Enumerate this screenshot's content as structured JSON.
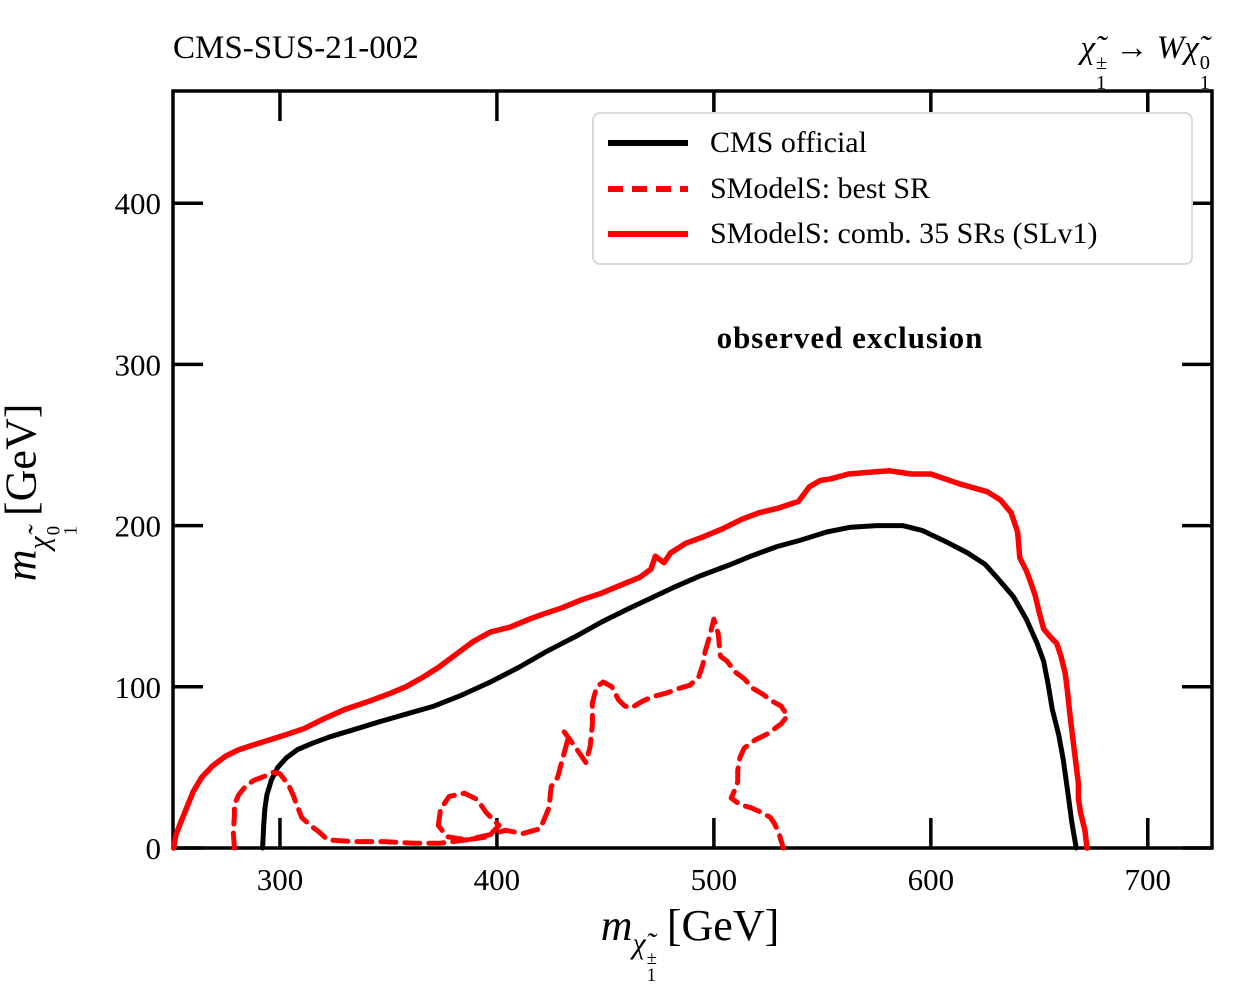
{
  "titles": {
    "left": "CMS-SUS-21-002"
  },
  "process": {
    "chi": "χ̃",
    "chargino_sup": "±",
    "chargino_sub": "1",
    "arrow": " → ",
    "boson": "W",
    "neutralino_chi": "χ̃",
    "neutralino_sup": "0",
    "neutralino_sub": "1"
  },
  "annotation": "observed exclusion",
  "legend": {
    "items": [
      {
        "label": "CMS official",
        "color": "#000000",
        "dash": null
      },
      {
        "label": "SModelS: best SR",
        "color": "#ff0000",
        "dash": [
          15,
          9
        ]
      },
      {
        "label": "SModelS: comb. 35 SRs (SLv1)",
        "color": "#ff0000",
        "dash": null
      }
    ]
  },
  "axes": {
    "x_label": {
      "m": "m",
      "chi": "χ̃",
      "sup": "±",
      "sub": "1",
      "unit": "[GeV]"
    },
    "y_label": {
      "m": "m",
      "chi": "χ̃",
      "sup": "0",
      "sub": "1",
      "unit": "[GeV]"
    }
  },
  "chart_data": {
    "type": "line",
    "title": "CMS-SUS-21-002",
    "xlabel": "m_chargino1 [GeV]",
    "ylabel": "m_neutralino1 [GeV]",
    "xlim": [
      250.7,
      729.6
    ],
    "ylim": [
      0,
      469.6
    ],
    "x_ticks": [
      300,
      400,
      500,
      600,
      700
    ],
    "y_ticks": [
      0,
      100,
      200,
      300,
      400
    ],
    "grid": false,
    "legend_position": "upper right",
    "series": [
      {
        "name": "CMS official",
        "color": "#000000",
        "width": 5,
        "dash": null,
        "closed": false,
        "points": [
          [
            292,
            0
          ],
          [
            292.5,
            14
          ],
          [
            293,
            24
          ],
          [
            294,
            33
          ],
          [
            296,
            42
          ],
          [
            299,
            50
          ],
          [
            303,
            56
          ],
          [
            308,
            61
          ],
          [
            315,
            65
          ],
          [
            323,
            69
          ],
          [
            333,
            73
          ],
          [
            345,
            78
          ],
          [
            358,
            83
          ],
          [
            371,
            88
          ],
          [
            384,
            95
          ],
          [
            397,
            103
          ],
          [
            410,
            112
          ],
          [
            423,
            122
          ],
          [
            436,
            131
          ],
          [
            448,
            140
          ],
          [
            460,
            148
          ],
          [
            471,
            155
          ],
          [
            482,
            162
          ],
          [
            494,
            169
          ],
          [
            506,
            175
          ],
          [
            517,
            181
          ],
          [
            529,
            187
          ],
          [
            540,
            191
          ],
          [
            552,
            196
          ],
          [
            563,
            199
          ],
          [
            575,
            200
          ],
          [
            587,
            200
          ],
          [
            596,
            197
          ],
          [
            607,
            190
          ],
          [
            617,
            183
          ],
          [
            625,
            176
          ],
          [
            631,
            167
          ],
          [
            638,
            156
          ],
          [
            644,
            142
          ],
          [
            649,
            127
          ],
          [
            652,
            116
          ],
          [
            654,
            102
          ],
          [
            656,
            86
          ],
          [
            659,
            70
          ],
          [
            661,
            55
          ],
          [
            663,
            36
          ],
          [
            665,
            16
          ],
          [
            667,
            0
          ]
        ]
      },
      {
        "name": "SModelS: best SR",
        "color": "#ff0000",
        "width": 5,
        "dash": [
          15,
          9
        ],
        "closed": false,
        "points": [
          [
            279,
            0
          ],
          [
            278.5,
            10
          ],
          [
            279,
            20
          ],
          [
            279,
            27
          ],
          [
            281,
            33
          ],
          [
            284,
            38
          ],
          [
            288,
            42
          ],
          [
            292,
            44
          ],
          [
            297,
            47
          ],
          [
            300,
            46
          ],
          [
            304,
            39
          ],
          [
            306,
            33
          ],
          [
            308,
            26
          ],
          [
            310,
            19
          ],
          [
            314,
            14
          ],
          [
            318,
            10
          ],
          [
            322,
            5
          ],
          [
            334,
            4
          ],
          [
            348,
            4
          ],
          [
            362,
            3
          ],
          [
            374,
            3
          ],
          [
            386,
            5
          ],
          [
            396,
            8
          ],
          [
            404,
            11
          ],
          [
            412,
            9
          ],
          [
            420,
            12
          ],
          [
            424,
            25
          ],
          [
            425,
            38
          ],
          [
            428,
            44
          ],
          [
            433,
            69
          ],
          [
            431,
            72
          ],
          [
            437,
            61
          ],
          [
            441,
            53
          ],
          [
            443,
            63
          ],
          [
            444,
            77
          ],
          [
            444,
            90
          ],
          [
            446,
            100
          ],
          [
            449,
            103
          ],
          [
            453,
            100
          ],
          [
            456,
            92
          ],
          [
            459,
            88
          ],
          [
            462,
            87
          ],
          [
            467,
            91
          ],
          [
            472,
            94
          ],
          [
            478,
            96
          ],
          [
            484,
            99
          ],
          [
            489,
            101
          ],
          [
            493,
            106
          ],
          [
            495,
            114
          ],
          [
            496,
            122
          ],
          [
            498,
            131
          ],
          [
            500,
            142
          ],
          [
            502,
            133
          ],
          [
            503,
            119
          ],
          [
            506,
            116
          ],
          [
            510,
            109
          ],
          [
            514,
            105
          ],
          [
            518,
            99
          ],
          [
            523,
            95
          ],
          [
            527,
            91
          ],
          [
            531,
            88
          ],
          [
            534,
            82
          ],
          [
            531,
            77
          ],
          [
            525,
            71
          ],
          [
            519,
            67
          ],
          [
            514,
            62
          ],
          [
            512,
            56
          ],
          [
            511,
            48
          ],
          [
            511,
            41
          ],
          [
            509,
            34
          ],
          [
            508,
            31
          ],
          [
            512,
            27
          ],
          [
            517,
            25
          ],
          [
            522,
            22
          ],
          [
            526,
            19
          ],
          [
            528,
            15
          ],
          [
            530,
            9
          ],
          [
            532,
            0
          ]
        ]
      },
      {
        "name": "SModelS: best SR (island)",
        "color": "#ff0000",
        "width": 5,
        "dash": [
          14,
          9
        ],
        "closed": true,
        "points": [
          [
            373,
            14
          ],
          [
            374,
            24
          ],
          [
            378,
            32
          ],
          [
            385,
            34
          ],
          [
            391,
            30
          ],
          [
            395,
            22
          ],
          [
            401,
            14
          ],
          [
            396,
            7
          ],
          [
            386,
            5
          ],
          [
            377,
            7
          ]
        ]
      },
      {
        "name": "SModelS: comb. 35 SRs (SLv1)",
        "color": "#ff0000",
        "width": 5.5,
        "dash": null,
        "closed": false,
        "points": [
          [
            251,
            0
          ],
          [
            252,
            8
          ],
          [
            254,
            15
          ],
          [
            257,
            25
          ],
          [
            260,
            35
          ],
          [
            264,
            44
          ],
          [
            269,
            51
          ],
          [
            275,
            57
          ],
          [
            281,
            61
          ],
          [
            288,
            64
          ],
          [
            295,
            67
          ],
          [
            302,
            70
          ],
          [
            311,
            74
          ],
          [
            320,
            80
          ],
          [
            330,
            86
          ],
          [
            341,
            91
          ],
          [
            351,
            96
          ],
          [
            358,
            100
          ],
          [
            366,
            106
          ],
          [
            373,
            112
          ],
          [
            381,
            120
          ],
          [
            389,
            128
          ],
          [
            397,
            134
          ],
          [
            406,
            137
          ],
          [
            415,
            142
          ],
          [
            421,
            145
          ],
          [
            430,
            149
          ],
          [
            439,
            154
          ],
          [
            448,
            158
          ],
          [
            457,
            163
          ],
          [
            466,
            168
          ],
          [
            471,
            173
          ],
          [
            473,
            181
          ],
          [
            477,
            177
          ],
          [
            480,
            183
          ],
          [
            487,
            189
          ],
          [
            495,
            193
          ],
          [
            504,
            198
          ],
          [
            513,
            204
          ],
          [
            521,
            208
          ],
          [
            530,
            211
          ],
          [
            539,
            215
          ],
          [
            544,
            224
          ],
          [
            549,
            228
          ],
          [
            554,
            229
          ],
          [
            562,
            232
          ],
          [
            571,
            233
          ],
          [
            581,
            234
          ],
          [
            591,
            232
          ],
          [
            600,
            232
          ],
          [
            613,
            226
          ],
          [
            626,
            221
          ],
          [
            632,
            216
          ],
          [
            637,
            208
          ],
          [
            640,
            196
          ],
          [
            641,
            180
          ],
          [
            644,
            172
          ],
          [
            646,
            165
          ],
          [
            648,
            157
          ],
          [
            650,
            146
          ],
          [
            652,
            136
          ],
          [
            655,
            131
          ],
          [
            658,
            127
          ],
          [
            660,
            119
          ],
          [
            662,
            108
          ],
          [
            663,
            97
          ],
          [
            664,
            84
          ],
          [
            665,
            73
          ],
          [
            666,
            62
          ],
          [
            667,
            51
          ],
          [
            668,
            40
          ],
          [
            668,
            31
          ],
          [
            669,
            22
          ],
          [
            671,
            11
          ],
          [
            672,
            0
          ]
        ]
      }
    ]
  }
}
